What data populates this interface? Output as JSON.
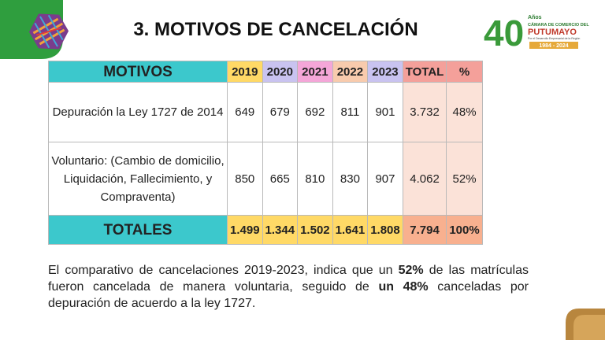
{
  "header": {
    "title": "3. MOTIVOS DE CANCELACIÓN"
  },
  "logo": {
    "number": "40",
    "anos": "Años",
    "org": "CÁMARA DE COMERCIO DEL",
    "name": "PUTUMAYO",
    "tagline": "Por el Desarrollo Empresarial de la Región",
    "years": "1984 - 2024"
  },
  "table": {
    "columns": [
      "MOTIVOS",
      "2019",
      "2020",
      "2021",
      "2022",
      "2023",
      "TOTAL",
      "%"
    ],
    "rows": [
      [
        "Depuración la Ley 1727 de 2014",
        "649",
        "679",
        "692",
        "811",
        "901",
        "3.732",
        "48%"
      ],
      [
        "Voluntario: (Cambio de domicilio,  Liquidación, Fallecimiento, y Compraventa)",
        "850",
        "665",
        "810",
        "830",
        "907",
        "4.062",
        "52%"
      ]
    ],
    "totals": [
      "TOTALES",
      "1.499",
      "1.344",
      "1.502",
      "1.641",
      "1.808",
      "7.794",
      "100%"
    ]
  },
  "paragraph": [
    {
      "text": "El comparativo de cancelaciones 2019-2023, indica que un ",
      "bold": false
    },
    {
      "text": "52%",
      "bold": true
    },
    {
      "text": " de las matrículas fueron cancelada de manera voluntaria, seguido de ",
      "bold": false
    },
    {
      "text": "un 48%",
      "bold": true
    },
    {
      "text": " canceladas por depuración de acuerdo a la ley 1727.",
      "bold": false
    }
  ]
}
